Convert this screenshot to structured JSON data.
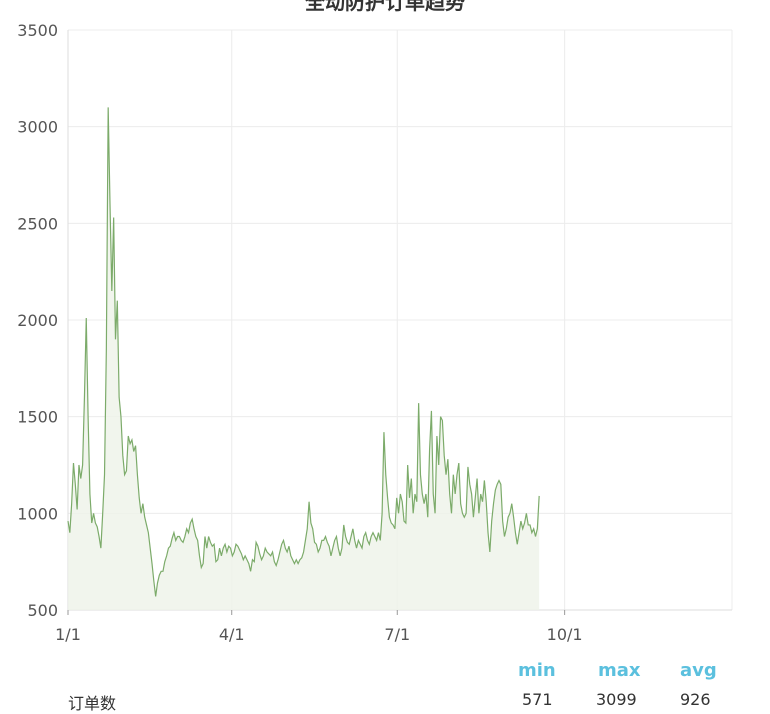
{
  "chart_data": {
    "type": "area",
    "title": "全动防护订单趋势",
    "xlabel": "",
    "ylabel": "",
    "ylim": [
      500,
      3500
    ],
    "y_ticks": [
      500,
      1000,
      1500,
      2000,
      2500,
      3000,
      3500
    ],
    "x_tick_labels": [
      "1/1",
      "4/1",
      "7/1",
      "10/1"
    ],
    "xlim": [
      "1/1",
      "12/31"
    ],
    "grid": true,
    "series": [
      {
        "name": "订单数",
        "color": "#7cab6a",
        "x_start": "1/1",
        "x_end": "9/17",
        "y": [
          960,
          900,
          1050,
          1260,
          1150,
          1020,
          1250,
          1180,
          1250,
          1600,
          2010,
          1500,
          1100,
          950,
          1000,
          950,
          930,
          880,
          820,
          1000,
          1200,
          1850,
          3100,
          2600,
          2150,
          2530,
          1900,
          2100,
          1600,
          1500,
          1300,
          1200,
          1220,
          1400,
          1360,
          1380,
          1320,
          1350,
          1200,
          1080,
          1000,
          1050,
          980,
          940,
          900,
          820,
          740,
          650,
          570,
          640,
          680,
          700,
          700,
          750,
          780,
          820,
          830,
          870,
          900,
          860,
          880,
          880,
          860,
          850,
          880,
          920,
          900,
          950,
          970,
          920,
          880,
          860,
          780,
          720,
          740,
          880,
          820,
          880,
          850,
          830,
          840,
          750,
          760,
          820,
          780,
          820,
          840,
          800,
          830,
          820,
          780,
          800,
          840,
          830,
          810,
          790,
          760,
          780,
          760,
          740,
          700,
          760,
          750,
          850,
          830,
          790,
          760,
          780,
          820,
          800,
          790,
          780,
          800,
          750,
          730,
          760,
          800,
          840,
          860,
          820,
          800,
          830,
          780,
          760,
          740,
          760,
          740,
          760,
          770,
          800,
          860,
          920,
          1060,
          950,
          920,
          850,
          840,
          800,
          820,
          860,
          860,
          880,
          850,
          830,
          780,
          820,
          860,
          880,
          820,
          780,
          820,
          940,
          880,
          850,
          840,
          880,
          920,
          860,
          820,
          860,
          840,
          820,
          880,
          900,
          860,
          840,
          880,
          900,
          880,
          860,
          900,
          860,
          1000,
          1420,
          1200,
          1080,
          980,
          950,
          940,
          920,
          1080,
          1000,
          1100,
          1060,
          960,
          950,
          1250,
          1080,
          1180,
          1000,
          1100,
          1060,
          1570,
          1200,
          1100,
          1050,
          1100,
          980,
          1330,
          1530,
          1100,
          1000,
          1400,
          1250,
          1500,
          1480,
          1300,
          1200,
          1280,
          1100,
          1000,
          1200,
          1100,
          1200,
          1260,
          1050,
          1000,
          980,
          1000,
          1240,
          1150,
          1100,
          980,
          1080,
          1180,
          1000,
          1100,
          1060,
          1170,
          1060,
          900,
          800,
          960,
          1050,
          1120,
          1150,
          1170,
          1150,
          960,
          880,
          920,
          980,
          1000,
          1050,
          980,
          900,
          840,
          900,
          960,
          920,
          950,
          1000,
          940,
          940,
          900,
          920,
          880,
          920,
          1090
        ]
      }
    ],
    "legend_headers": [
      "min",
      "max",
      "avg"
    ],
    "legend_label": "订单数",
    "legend_values": [
      "571",
      "3099",
      "926"
    ]
  }
}
